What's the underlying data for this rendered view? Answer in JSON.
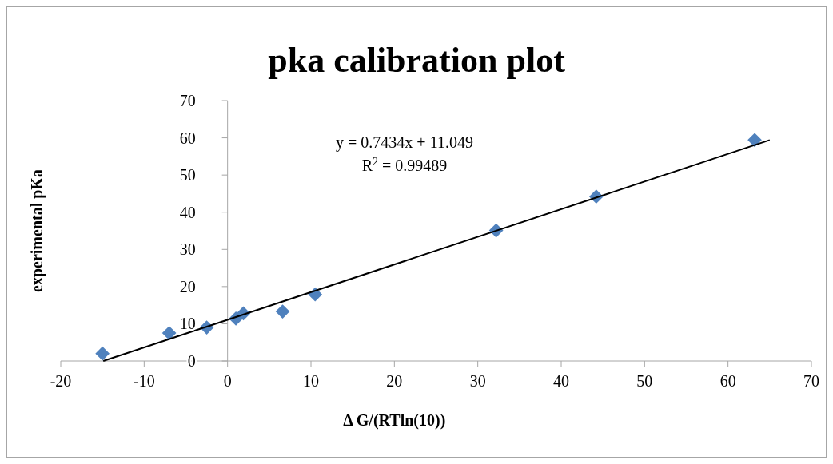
{
  "chart_data": {
    "type": "scatter",
    "title": "pka calibration plot",
    "xlabel": "Δ G/(RTln(10))",
    "ylabel": "experimental pKa",
    "series": [
      {
        "color": "#4f81bd",
        "marker": "diamond",
        "x": [
          -15,
          -7,
          -2.5,
          1,
          1.9,
          6.6,
          10.5,
          32.2,
          44.2,
          63.2
        ],
        "values": [
          2,
          7.5,
          9,
          11.4,
          12.8,
          13.3,
          17.9,
          35.1,
          44.2,
          59.4
        ]
      },
      {
        "type": "line",
        "color": "#000000",
        "marker": "none",
        "x": [
          -14.9,
          65
        ],
        "values": [
          0,
          59.4
        ]
      }
    ],
    "annotations": [
      "y = 0.7434x + 11.049",
      "R$^{2}$ = 0.99489"
    ],
    "xlim": [
      -20,
      70
    ],
    "xticks": [
      -20,
      -10,
      0,
      10,
      20,
      30,
      40,
      50,
      60,
      70
    ],
    "ylim": [
      0,
      70
    ],
    "yticks": [
      0,
      10,
      20,
      30,
      40,
      50,
      60,
      70
    ],
    "grid": false
  }
}
